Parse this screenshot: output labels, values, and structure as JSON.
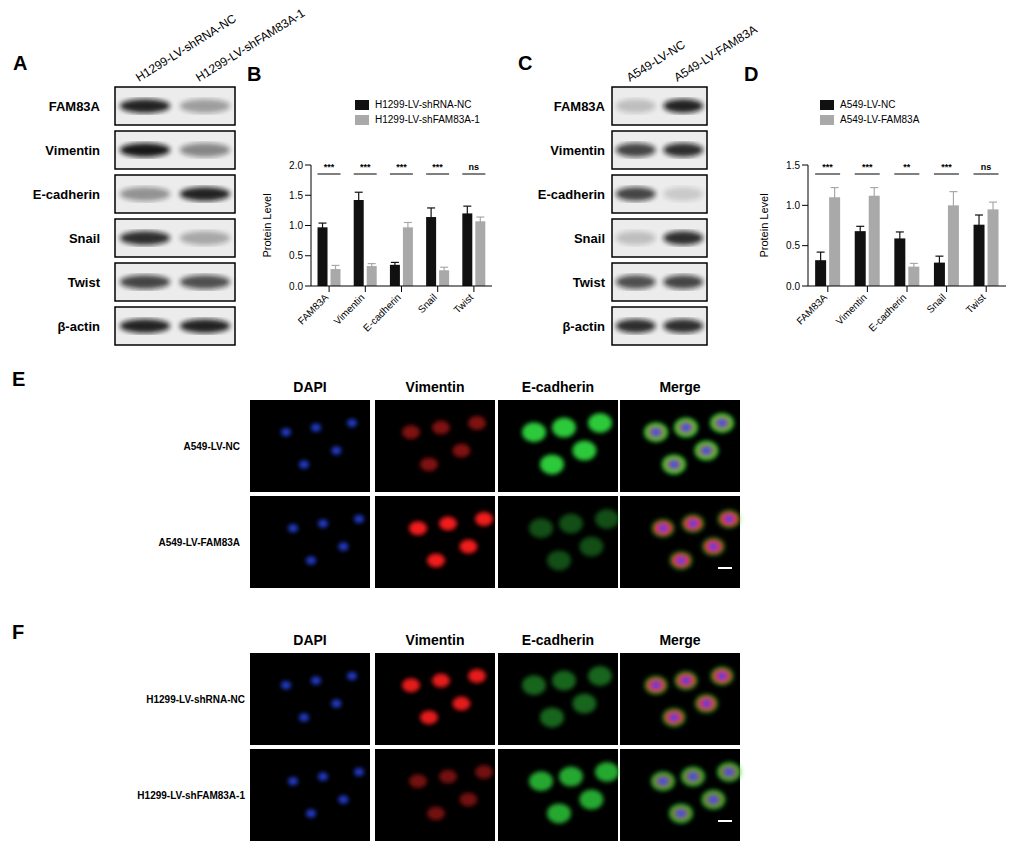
{
  "chart_data": [
    {
      "title": "B",
      "type": "bar",
      "ylabel": "Protein Level",
      "categories": [
        "FAM83A",
        "Vimentin",
        "E-cadherin",
        "Snail",
        "Twist"
      ],
      "series": [
        {
          "name": "H1299-LV-shRNA-NC",
          "color": "#111111",
          "values": [
            0.97,
            1.42,
            0.35,
            1.14,
            1.2
          ],
          "errors": [
            0.07,
            0.13,
            0.04,
            0.15,
            0.12
          ]
        },
        {
          "name": "H1299-LV-shFAM83A-1",
          "color": "#a9a9a9",
          "values": [
            0.28,
            0.33,
            0.97,
            0.26,
            1.07
          ],
          "errors": [
            0.06,
            0.04,
            0.08,
            0.05,
            0.07
          ]
        }
      ],
      "significance": [
        "***",
        "***",
        "***",
        "***",
        "ns"
      ],
      "ylim": [
        0,
        2
      ],
      "yticks": [
        {
          "value": 0,
          "label": "0.0"
        },
        0.5,
        {
          "value": 1,
          "label": "1.0"
        },
        1.5,
        {
          "value": 2,
          "label": "2.0"
        }
      ],
      "legend": "top"
    },
    {
      "title": "D",
      "type": "bar",
      "ylabel": "Protein Level",
      "categories": [
        "FAM83A",
        "Vimentin",
        "E-cadherin",
        "Snail",
        "Twist"
      ],
      "series": [
        {
          "name": "A549-LV-NC",
          "color": "#111111",
          "values": [
            0.32,
            0.68,
            0.59,
            0.29,
            0.76
          ],
          "errors": [
            0.1,
            0.06,
            0.08,
            0.08,
            0.12
          ]
        },
        {
          "name": "A549-LV-FAM83A",
          "color": "#a9a9a9",
          "values": [
            1.1,
            1.12,
            0.24,
            1.0,
            0.95
          ],
          "errors": [
            0.12,
            0.1,
            0.04,
            0.17,
            0.09
          ]
        }
      ],
      "significance": [
        "***",
        "***",
        "**",
        "***",
        "ns"
      ],
      "ylim": [
        0,
        1.5
      ],
      "yticks": [
        {
          "value": 0,
          "label": "0.0"
        },
        0.5,
        {
          "value": 1,
          "label": "1.0"
        },
        1.5
      ],
      "legend": "top"
    }
  ],
  "blots": [
    {
      "title": "A",
      "lanes": [
        "H1299-LV-shRNA-NC",
        "H1299-LV-shFAM83A-1"
      ],
      "rows": [
        {
          "label": "FAM83A",
          "intensity": [
            0.9,
            0.35
          ]
        },
        {
          "label": "Vimentin",
          "intensity": [
            0.95,
            0.45
          ]
        },
        {
          "label": "E-cadherin",
          "intensity": [
            0.4,
            0.9
          ]
        },
        {
          "label": "Snail",
          "intensity": [
            0.85,
            0.3
          ]
        },
        {
          "label": "Twist",
          "intensity": [
            0.75,
            0.7
          ]
        },
        {
          "label": "β-actin",
          "intensity": [
            0.9,
            0.9
          ]
        }
      ]
    },
    {
      "title": "C",
      "lanes": [
        "A549-LV-NC",
        "A549-LV-FAM83A"
      ],
      "rows": [
        {
          "label": "FAM83A",
          "intensity": [
            0.2,
            0.9
          ]
        },
        {
          "label": "Vimentin",
          "intensity": [
            0.75,
            0.85
          ]
        },
        {
          "label": "E-cadherin",
          "intensity": [
            0.75,
            0.15
          ]
        },
        {
          "label": "Snail",
          "intensity": [
            0.2,
            0.85
          ]
        },
        {
          "label": "Twist",
          "intensity": [
            0.7,
            0.75
          ]
        },
        {
          "label": "β-actin",
          "intensity": [
            0.85,
            0.85
          ]
        }
      ]
    }
  ],
  "if_panels": [
    {
      "title": "E",
      "channels": [
        "DAPI",
        "Vimentin",
        "E-cadherin",
        "Merge"
      ],
      "rows": [
        {
          "label": "A549-LV-NC",
          "signal": [
            0.8,
            0.5,
            0.9,
            null
          ]
        },
        {
          "label": "A549-LV-FAM83A",
          "signal": [
            0.8,
            0.95,
            0.35,
            null
          ]
        }
      ]
    },
    {
      "title": "F",
      "channels": [
        "DAPI",
        "Vimentin",
        "E-cadherin",
        "Merge"
      ],
      "rows": [
        {
          "label": "H1299-LV-shRNA-NC",
          "signal": [
            0.8,
            0.9,
            0.45,
            null
          ]
        },
        {
          "label": "H1299-LV-shFAM83A-1",
          "signal": [
            0.8,
            0.45,
            0.75,
            null
          ]
        }
      ]
    }
  ]
}
